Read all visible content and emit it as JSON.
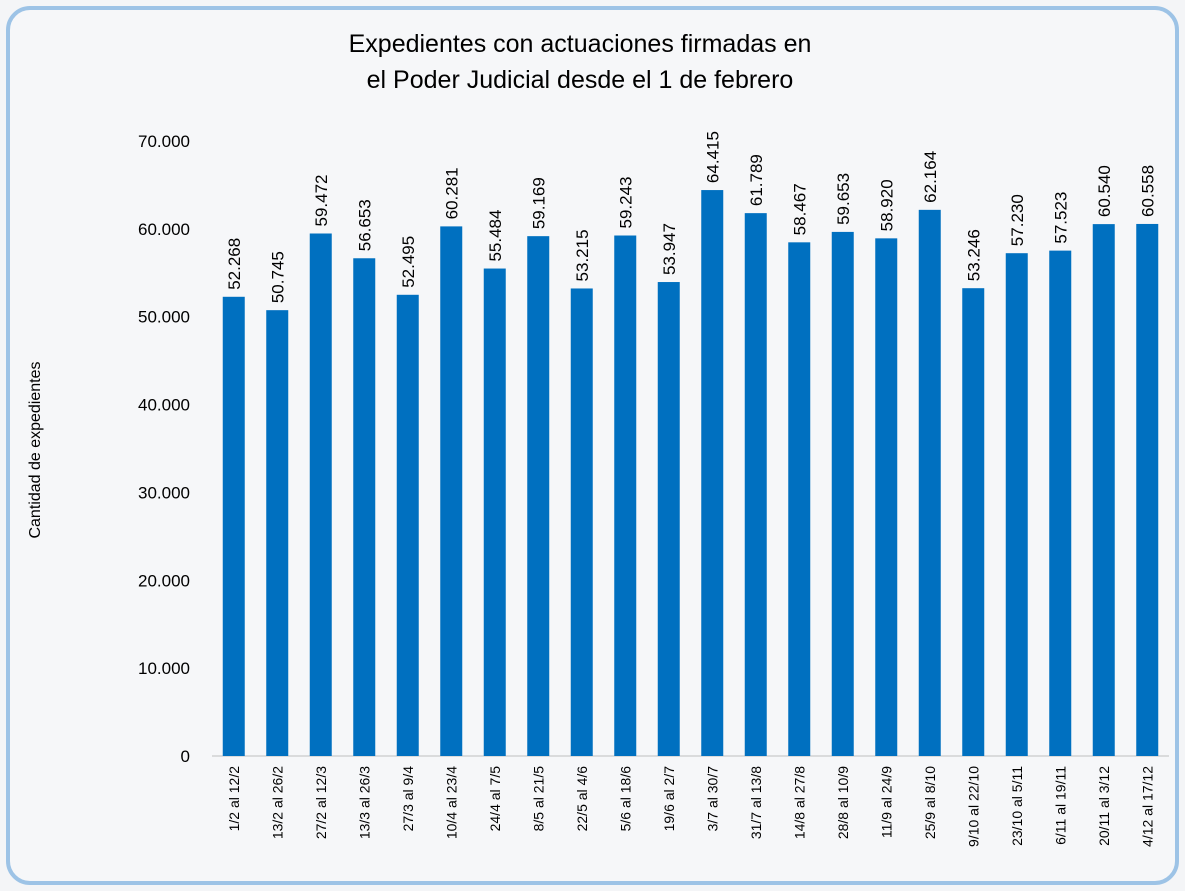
{
  "chart_data": {
    "type": "bar",
    "title": [
      "Expedientes con actuaciones firmadas en",
      "el Poder Judicial desde el 1 de febrero"
    ],
    "y_label": "Cantidad de expedientes",
    "categories": [
      "1/2 al 12/2",
      "13/2 al 26/2",
      "27/2 al 12/3",
      "13/3 al 26/3",
      "27/3 al 9/4",
      "10/4 al 23/4",
      "24/4 al 7/5",
      "8/5 al 21/5",
      "22/5 al 4/6",
      "5/6 al 18/6",
      "19/6 al 2/7",
      "3/7 al 30/7",
      "31/7 al 13/8",
      "14/8 al 27/8",
      "28/8 al 10/9",
      "11/9 al 24/9",
      "25/9 al 8/10",
      "9/10 al 22/10",
      "23/10 al 5/11",
      "6/11 al 19/11",
      "20/11 al 3/12",
      "4/12 al 17/12"
    ],
    "values": [
      52268,
      50745,
      59472,
      56653,
      52495,
      60281,
      55484,
      59169,
      53215,
      59243,
      53947,
      64415,
      61789,
      58467,
      59653,
      58920,
      62164,
      53246,
      57230,
      57523,
      60540,
      60558
    ],
    "value_labels": [
      "52.268",
      "50.745",
      "59.472",
      "56.653",
      "52.495",
      "60.281",
      "55.484",
      "59.169",
      "53.215",
      "59.243",
      "53.947",
      "64.415",
      "61.789",
      "58.467",
      "59.653",
      "58.920",
      "62.164",
      "53.246",
      "57.230",
      "57.523",
      "60.540",
      "60.558"
    ],
    "color": "#0070c0",
    "ylim": [
      0,
      70000
    ],
    "yticks": [
      0,
      {
        "value": 10000,
        "label": "10.000"
      },
      {
        "value": 20000,
        "label": "20.000"
      },
      {
        "value": 30000,
        "label": "30.000"
      },
      {
        "value": 40000,
        "label": "40.000"
      },
      {
        "value": 50000,
        "label": "50.000"
      },
      {
        "value": 60000,
        "label": "60.000"
      },
      {
        "value": 70000,
        "label": "70.000"
      }
    ],
    "grid": false
  }
}
